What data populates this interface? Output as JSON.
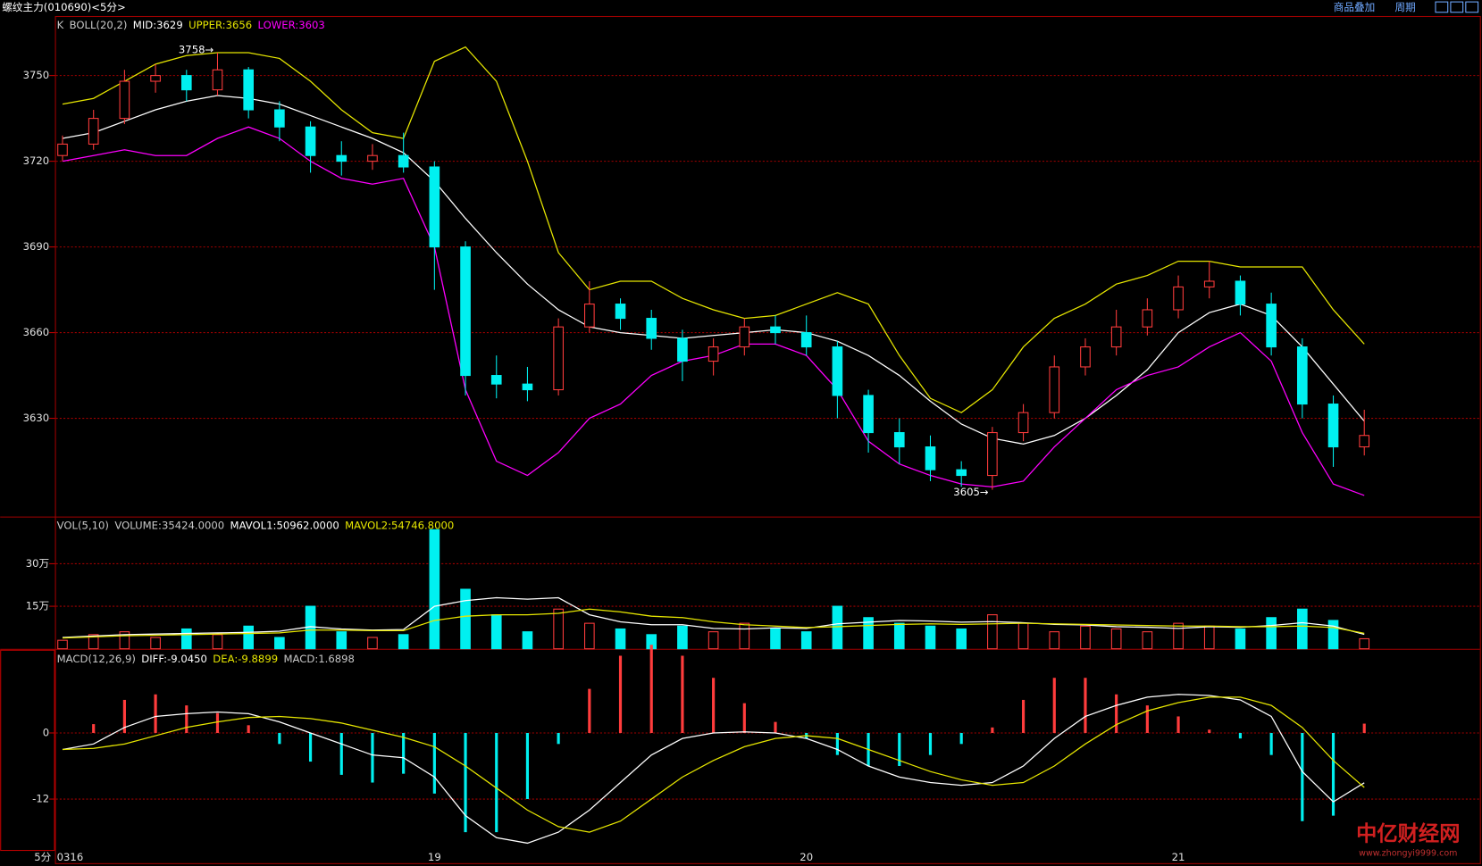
{
  "window": {
    "title": "螺纹主力(010690)<5分>",
    "buttons": [
      "商品叠加",
      "周期"
    ]
  },
  "watermark": {
    "title": "中亿财经网",
    "url": "www.zhongyi9999.com"
  },
  "chart_data": [
    {
      "type": "candlestick",
      "label": "K",
      "indicator": "BOLL(20,2)",
      "open": [
        3722,
        3726,
        3735,
        3748,
        3750,
        3745,
        3752,
        3738,
        3732,
        3722,
        3720,
        3722,
        3718,
        3690,
        3645,
        3642,
        3640,
        3662,
        3670,
        3665,
        3658,
        3650,
        3655,
        3662,
        3660,
        3655,
        3638,
        3625,
        3620,
        3612,
        3610,
        3625,
        3632,
        3648,
        3655,
        3662,
        3668,
        3676,
        3678,
        3670,
        3655,
        3635,
        3620
      ],
      "high": [
        3729,
        3738,
        3752,
        3754,
        3752,
        3758,
        3753,
        3741,
        3734,
        3727,
        3726,
        3730,
        3720,
        3692,
        3652,
        3648,
        3665,
        3678,
        3672,
        3668,
        3661,
        3658,
        3665,
        3666,
        3666,
        3657,
        3640,
        3630,
        3624,
        3615,
        3627,
        3635,
        3652,
        3658,
        3668,
        3672,
        3680,
        3685,
        3680,
        3674,
        3658,
        3638,
        3633
      ],
      "low": [
        3720,
        3724,
        3733,
        3744,
        3741,
        3743,
        3735,
        3727,
        3716,
        3715,
        3717,
        3716,
        3675,
        3638,
        3637,
        3636,
        3638,
        3660,
        3661,
        3654,
        3643,
        3645,
        3652,
        3656,
        3652,
        3630,
        3618,
        3614,
        3608,
        3606,
        3605,
        3622,
        3630,
        3645,
        3652,
        3659,
        3665,
        3672,
        3666,
        3652,
        3630,
        3613,
        3617
      ],
      "close": [
        3726,
        3735,
        3748,
        3750,
        3745,
        3752,
        3738,
        3732,
        3722,
        3720,
        3722,
        3718,
        3690,
        3645,
        3642,
        3640,
        3662,
        3670,
        3665,
        3658,
        3650,
        3655,
        3662,
        3660,
        3655,
        3638,
        3625,
        3620,
        3612,
        3610,
        3625,
        3632,
        3648,
        3655,
        3662,
        3668,
        3676,
        3678,
        3670,
        3655,
        3635,
        3620,
        3624
      ],
      "up_color": "#ff3c3c",
      "down_color": "#00f0f0",
      "series": [
        {
          "name": "MID:3629",
          "color": "#ffffff",
          "values": [
            3728,
            3730,
            3734,
            3738,
            3741,
            3743,
            3742,
            3740,
            3736,
            3732,
            3728,
            3723,
            3713,
            3700,
            3688,
            3677,
            3668,
            3662,
            3660,
            3659,
            3658,
            3659,
            3660,
            3661,
            3660,
            3657,
            3652,
            3645,
            3636,
            3628,
            3623,
            3621,
            3624,
            3630,
            3638,
            3647,
            3660,
            3667,
            3670,
            3666,
            3655,
            3642,
            3629
          ]
        },
        {
          "name": "UPPER:3656",
          "color": "#e6e600",
          "values": [
            3740,
            3742,
            3748,
            3754,
            3757,
            3758,
            3758,
            3756,
            3748,
            3738,
            3730,
            3728,
            3755,
            3760,
            3748,
            3720,
            3688,
            3675,
            3678,
            3678,
            3672,
            3668,
            3665,
            3666,
            3670,
            3674,
            3670,
            3652,
            3637,
            3632,
            3640,
            3655,
            3665,
            3670,
            3677,
            3680,
            3685,
            3685,
            3683,
            3683,
            3683,
            3668,
            3656
          ]
        },
        {
          "name": "LOWER:3603",
          "color": "#ff00ff",
          "values": [
            3720,
            3722,
            3724,
            3722,
            3722,
            3728,
            3732,
            3728,
            3720,
            3714,
            3712,
            3714,
            3690,
            3640,
            3615,
            3610,
            3618,
            3630,
            3635,
            3645,
            3650,
            3652,
            3656,
            3656,
            3652,
            3640,
            3622,
            3614,
            3610,
            3607,
            3606,
            3608,
            3620,
            3630,
            3640,
            3645,
            3648,
            3655,
            3660,
            3650,
            3625,
            3607,
            3603
          ]
        }
      ],
      "annotations": [
        "3758→",
        "3605→"
      ],
      "ylim": [
        3595.6,
        3770.5
      ],
      "yticks": [
        3630,
        3660,
        3690,
        3720,
        3750
      ],
      "grid": true
    },
    {
      "type": "bar",
      "label": "VOL(5,10)",
      "value_name": "VOLUME:35424.0000",
      "values": [
        30000,
        50000,
        60000,
        40000,
        70000,
        50000,
        80000,
        40000,
        150000,
        60000,
        40000,
        50000,
        420000,
        210000,
        120000,
        60000,
        140000,
        90000,
        70000,
        50000,
        80000,
        60000,
        90000,
        70000,
        60000,
        150000,
        110000,
        90000,
        80000,
        70000,
        120000,
        90000,
        60000,
        80000,
        70000,
        60000,
        90000,
        80000,
        70000,
        110000,
        140000,
        100000,
        35424
      ],
      "series": [
        {
          "name": "MAVOL1:50962.0000",
          "color": "#ffffff",
          "values": [
            40000,
            45000,
            50000,
            52000,
            54000,
            56000,
            58000,
            62000,
            78000,
            70000,
            66000,
            68000,
            150000,
            170000,
            180000,
            175000,
            180000,
            120000,
            95000,
            85000,
            85000,
            72000,
            70000,
            74000,
            72000,
            88000,
            94000,
            100000,
            98000,
            94000,
            96000,
            92000,
            86000,
            84000,
            78000,
            76000,
            72000,
            78000,
            76000,
            82000,
            92000,
            80000,
            50962
          ]
        },
        {
          "name": "MAVOL2:54746.8000",
          "color": "#e6e600",
          "values": [
            38000,
            42000,
            46000,
            48000,
            50000,
            52000,
            54000,
            56000,
            66000,
            66000,
            64000,
            64000,
            100000,
            115000,
            120000,
            120000,
            125000,
            140000,
            130000,
            115000,
            110000,
            95000,
            85000,
            80000,
            75000,
            78000,
            82000,
            86000,
            88000,
            86000,
            88000,
            90000,
            88000,
            86000,
            84000,
            82000,
            80000,
            80000,
            78000,
            78000,
            80000,
            75000,
            54746.8
          ]
        }
      ],
      "ylim": [
        0,
        463000
      ],
      "yticks": [
        {
          "value": 150000,
          "label": "15万"
        },
        {
          "value": 300000,
          "label": "30万"
        }
      ],
      "grid": true
    },
    {
      "type": "macd",
      "label": "MACD(12,26,9)",
      "x_unit": "5分",
      "categories": [
        "0316",
        null,
        null,
        null,
        null,
        null,
        null,
        null,
        null,
        null,
        null,
        null,
        "19",
        null,
        null,
        null,
        null,
        null,
        null,
        null,
        null,
        null,
        null,
        null,
        "20",
        null,
        null,
        null,
        null,
        null,
        null,
        null,
        null,
        null,
        null,
        null,
        "21",
        null,
        null,
        null,
        null,
        null,
        null
      ],
      "hist_name": "MACD:1.6898",
      "values": [
        0,
        1.6,
        6,
        7,
        5,
        3.6,
        1.4,
        -2,
        -5.2,
        -7.6,
        -9,
        -7.4,
        -11,
        -18,
        -18,
        -12,
        -2,
        8,
        14,
        16,
        14,
        10,
        5.4,
        2,
        -1,
        -4,
        -6,
        -6,
        -4,
        -2,
        1,
        6,
        10,
        10,
        7,
        5,
        3,
        0.6,
        -1,
        -4,
        -16,
        -15,
        1.6898
      ],
      "series": [
        {
          "name": "DIFF:-9.0450",
          "color": "#ffffff",
          "values": [
            -3,
            -2,
            1,
            3,
            3.5,
            3.8,
            3.5,
            2,
            0,
            -2,
            -4,
            -4.5,
            -8,
            -15,
            -19,
            -20,
            -18,
            -14,
            -9,
            -4,
            -1,
            0,
            0.2,
            0,
            -1,
            -3,
            -6,
            -8,
            -9,
            -9.5,
            -9,
            -6,
            -1,
            3,
            5,
            6.5,
            7,
            6.8,
            6,
            3,
            -7,
            -12.5,
            -9.045
          ]
        },
        {
          "name": "DEA:-9.8899",
          "color": "#e6e600",
          "values": [
            -3,
            -2.8,
            -2,
            -0.5,
            1,
            2,
            2.8,
            3,
            2.6,
            1.8,
            0.5,
            -0.8,
            -2.5,
            -6,
            -10,
            -14,
            -17,
            -18,
            -16,
            -12,
            -8,
            -5,
            -2.5,
            -1,
            -0.5,
            -1,
            -3,
            -5,
            -7,
            -8.5,
            -9.5,
            -9,
            -6,
            -2,
            1.5,
            4,
            5.5,
            6.5,
            6.5,
            5,
            1,
            -5,
            -9.8899
          ]
        }
      ],
      "up_color": "#ff3c3c",
      "down_color": "#00f0f0",
      "ylim": [
        -23.8,
        15.1
      ],
      "yticks": [
        -12,
        0
      ],
      "grid": true
    }
  ]
}
